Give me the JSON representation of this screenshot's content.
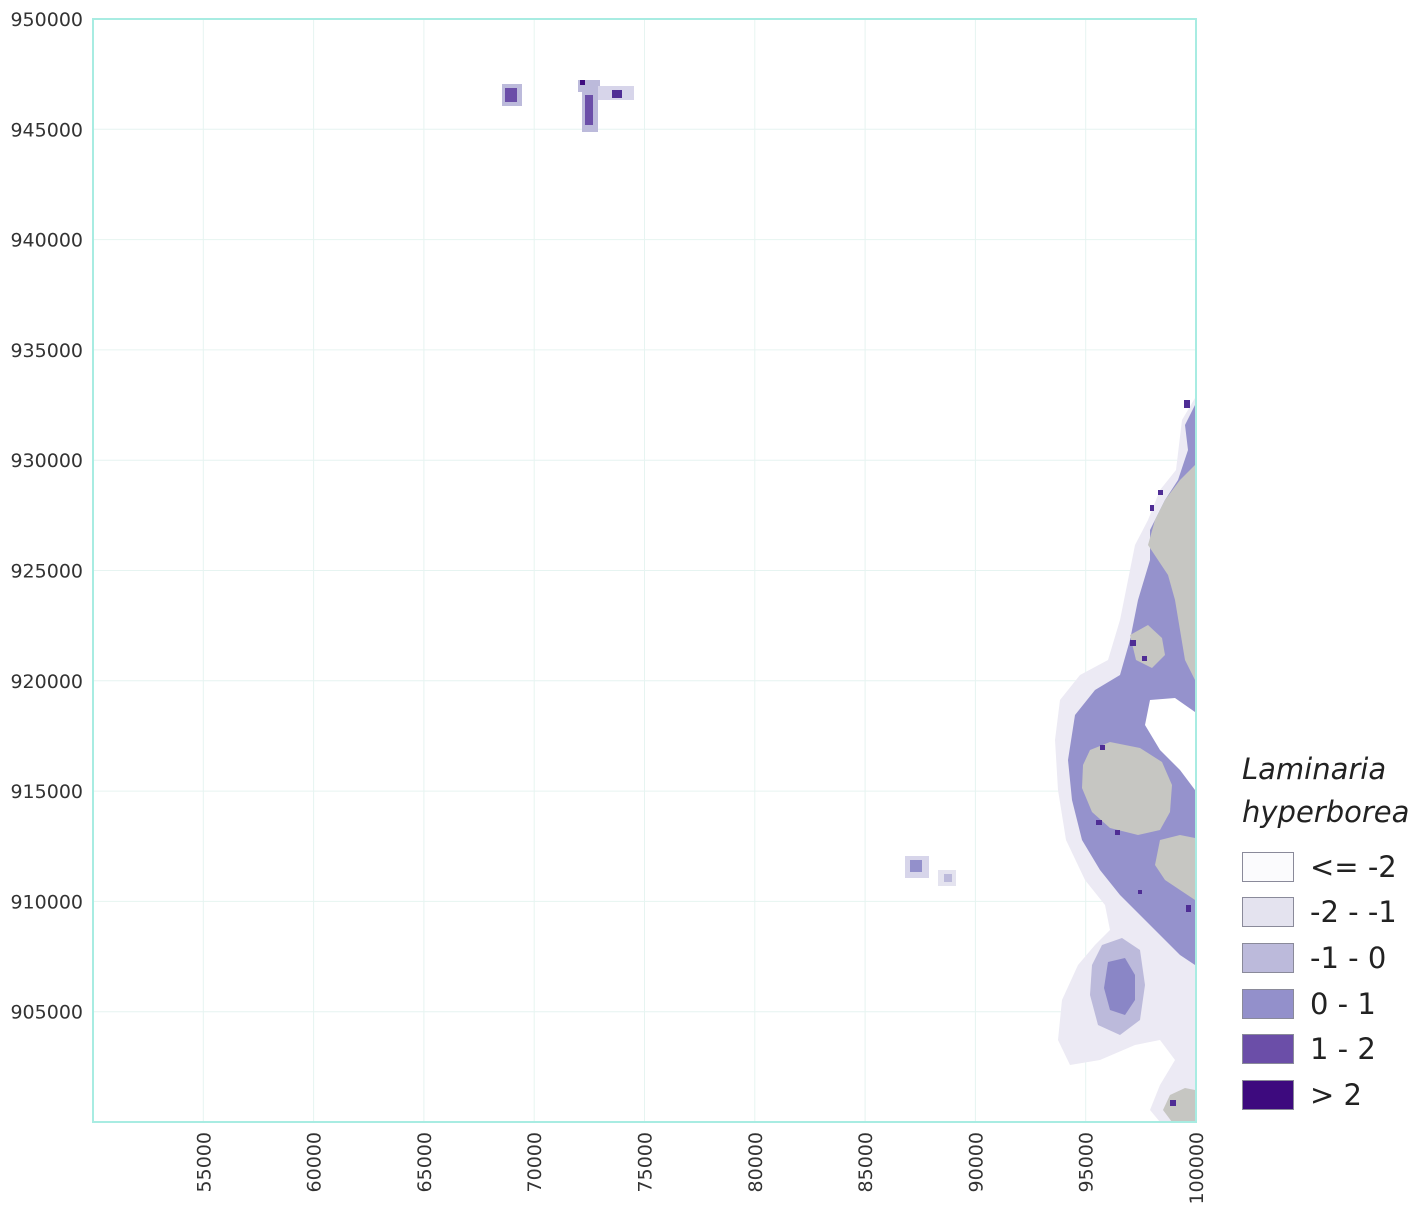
{
  "map": {
    "x_ticks": [
      "55000",
      "60000",
      "65000",
      "70000",
      "75000",
      "80000",
      "85000",
      "90000",
      "95000",
      "100000"
    ],
    "y_ticks": [
      "950000",
      "945000",
      "940000",
      "935000",
      "930000",
      "925000",
      "920000",
      "915000",
      "910000",
      "905000"
    ],
    "x_range": [
      50000,
      100000
    ],
    "y_range": [
      900000,
      950000
    ],
    "grid": true,
    "land_color": "#c6c6c2",
    "frame_color": "#a8ece2"
  },
  "legend": {
    "title_line1": "Laminaria",
    "title_line2": "hyperborea",
    "placement": "right",
    "classes": [
      {
        "label": "<= -2",
        "color": "#fbfbfd"
      },
      {
        "label": "-2 - -1",
        "color": "#e4e3ef"
      },
      {
        "label": "-1 - 0",
        "color": "#bcbadb"
      },
      {
        "label": "0 - 1",
        "color": "#9390cb"
      },
      {
        "label": "1 - 2",
        "color": "#6b4ea8"
      },
      {
        "label": "> 2",
        "color": "#3d0a7e"
      }
    ]
  }
}
